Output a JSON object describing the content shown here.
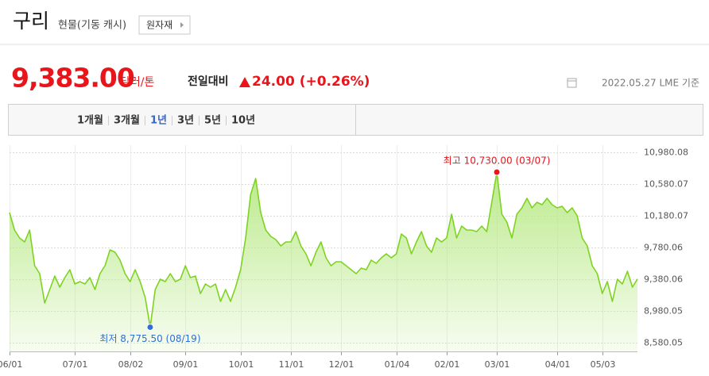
{
  "header": {
    "title": "구리",
    "subtitle": "현물(기동 캐시)",
    "button": "원자재"
  },
  "quote": {
    "price": "9,383.00",
    "unit": "달러/톤",
    "change_label": "전일대비",
    "change": "24.00 (+0.26%)",
    "date": "2022.05.27 LME 기준"
  },
  "tabs": {
    "items": [
      "1개월",
      "3개월",
      "1년",
      "3년",
      "5년",
      "10년"
    ],
    "active": 2
  },
  "chart_data": {
    "type": "area",
    "color": "#7ed321",
    "fill": "#b8e986",
    "categories": [
      "06/01",
      null,
      null,
      null,
      null,
      null,
      null,
      null,
      null,
      null,
      null,
      null,
      null,
      "07/01",
      null,
      null,
      null,
      null,
      null,
      null,
      null,
      null,
      null,
      null,
      "08/02",
      null,
      null,
      null,
      null,
      null,
      null,
      null,
      null,
      null,
      null,
      "09/01",
      null,
      null,
      null,
      null,
      null,
      null,
      null,
      null,
      null,
      null,
      "10/01",
      null,
      null,
      null,
      null,
      null,
      null,
      null,
      null,
      null,
      "11/01",
      null,
      null,
      null,
      null,
      null,
      null,
      null,
      null,
      null,
      "12/01",
      null,
      null,
      null,
      null,
      null,
      null,
      null,
      null,
      null,
      null,
      "01/04",
      null,
      null,
      null,
      null,
      null,
      null,
      null,
      null,
      null,
      "02/01",
      null,
      null,
      null,
      null,
      null,
      null,
      null,
      null,
      null,
      "03/01",
      null,
      null,
      null,
      null,
      null,
      null,
      null,
      null,
      null,
      null,
      null,
      "04/01",
      null,
      null,
      null,
      null,
      null,
      null,
      null,
      null,
      "05/03",
      null,
      null,
      null,
      null,
      null,
      null,
      null
    ],
    "values": [
      10220,
      10000,
      9900,
      9850,
      10000,
      9550,
      9450,
      9080,
      9250,
      9420,
      9280,
      9400,
      9500,
      9320,
      9350,
      9320,
      9400,
      9250,
      9450,
      9550,
      9750,
      9720,
      9620,
      9450,
      9350,
      9500,
      9350,
      9150,
      8775.5,
      9250,
      9380,
      9350,
      9450,
      9350,
      9380,
      9550,
      9400,
      9420,
      9200,
      9320,
      9280,
      9320,
      9100,
      9250,
      9100,
      9280,
      9500,
      9900,
      10450,
      10650,
      10220,
      10000,
      9920,
      9880,
      9800,
      9850,
      9850,
      9980,
      9800,
      9700,
      9550,
      9720,
      9850,
      9650,
      9550,
      9600,
      9600,
      9550,
      9500,
      9450,
      9520,
      9500,
      9620,
      9580,
      9650,
      9700,
      9650,
      9700,
      9950,
      9900,
      9700,
      9850,
      9980,
      9800,
      9720,
      9900,
      9850,
      9900,
      10200,
      9900,
      10050,
      10000,
      10000,
      9980,
      10050,
      9980,
      10350,
      10730,
      10200,
      10100,
      9900,
      10200,
      10280,
      10400,
      10280,
      10350,
      10320,
      10400,
      10320,
      10280,
      10300,
      10220,
      10280,
      10180,
      9900,
      9800,
      9550,
      9450,
      9200,
      9350,
      9100,
      9380,
      9320,
      9480,
      9280,
      9383
    ],
    "ylim": [
      8470,
      11070
    ],
    "yticks": [
      {
        "value": 8580.05,
        "label": "8,580.05"
      },
      {
        "value": 8980.05,
        "label": "8,980.05"
      },
      {
        "value": 9380.06,
        "label": "9,380.06"
      },
      {
        "value": 9780.06,
        "label": "9,780.06"
      },
      {
        "value": 10180.07,
        "label": "10,180.07"
      },
      {
        "value": 10580.07,
        "label": "10,580.07"
      },
      {
        "value": 10980.08,
        "label": "10,980.08"
      }
    ],
    "grid": true,
    "annotations": [
      {
        "at": "max",
        "text": "최고 10,730.00 (03/07)",
        "color": "#e8151b"
      },
      {
        "at": "min",
        "text": "최저 8,775.50 (08/19)",
        "color": "#2f6fd6"
      }
    ]
  }
}
